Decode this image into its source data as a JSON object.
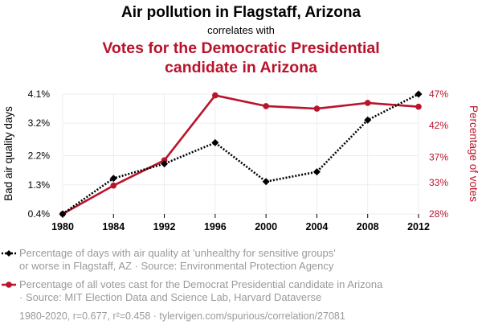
{
  "colors": {
    "series1": "#000000",
    "series2": "#b8142b",
    "legend_text": "#9a9a9a"
  },
  "header": {
    "title": "Air pollution in Flagstaff, Arizona",
    "subtitle": "correlates with",
    "title2_line1": "Votes for the Democratic Presidential",
    "title2_line2": "candidate in Arizona"
  },
  "legend": {
    "item1_line1": "Percentage of days with air quality at 'unhealthy for sensitive groups'",
    "item1_line2": "or worse in Flagstaff, AZ · Source: Environmental Protection Agency",
    "item2_line1": "Percentage of all votes cast for the Democrat Presidential candidate in Arizona",
    "item2_line2": "· Source: MIT Election Data and Science Lab, Harvard Dataverse"
  },
  "footer": {
    "text": "1980-2020, r=0.677, r²=0.458 · tylervigen.com/spurious/correlation/27081"
  },
  "chart_data": {
    "type": "line",
    "title": "Air pollution in Flagstaff, Arizona correlates with Votes for the Democratic Presidential candidate in Arizona",
    "categories": [
      "1980",
      "1984",
      "1992",
      "1996",
      "2000",
      "2004",
      "2008",
      "2012"
    ],
    "ylabel_left": "Bad air quality days",
    "ylabel_right": "Percentage of votes",
    "y_left_ticks": [
      "0.4%",
      "1.3%",
      "2.2%",
      "3.2%",
      "4.1%"
    ],
    "y_left_tick_values": [
      0.4,
      1.3,
      2.2,
      3.2,
      4.1
    ],
    "y_right_ticks": [
      "28%",
      "33%",
      "37%",
      "42%",
      "47%"
    ],
    "y_right_tick_values": [
      28,
      33,
      37,
      42,
      47
    ],
    "ylim_left": [
      0.4,
      4.1
    ],
    "ylim_right": [
      28,
      47
    ],
    "grid": true,
    "series": [
      {
        "name": "Bad air quality days",
        "axis": "left",
        "style": "dotted",
        "marker": "diamond",
        "values": [
          0.4,
          1.5,
          1.95,
          2.6,
          1.4,
          1.7,
          3.3,
          4.1
        ]
      },
      {
        "name": "Percentage of votes",
        "axis": "right",
        "style": "solid",
        "marker": "circle",
        "values": [
          28.0,
          32.5,
          36.5,
          46.8,
          45.1,
          44.7,
          45.6,
          45.0
        ]
      }
    ]
  }
}
